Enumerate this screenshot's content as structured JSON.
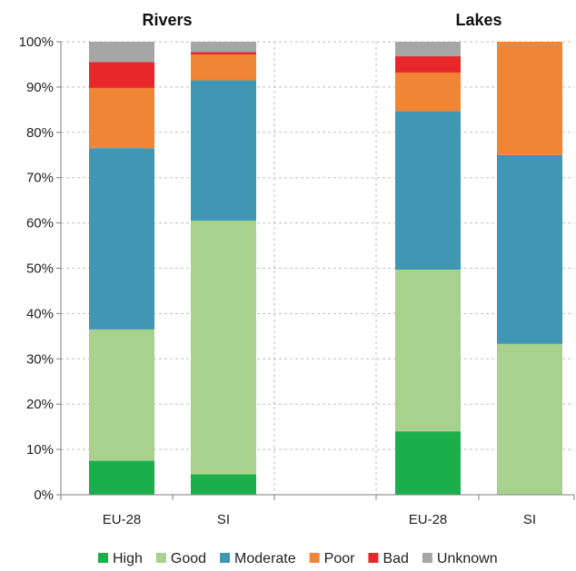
{
  "chart_data": {
    "type": "bar",
    "stacked": true,
    "groups": [
      {
        "title": "Rivers",
        "categories": [
          "EU-28",
          "SI"
        ]
      },
      {
        "title": "Lakes",
        "categories": [
          "EU-28",
          "SI"
        ]
      }
    ],
    "categories": [
      "EU-28",
      "SI",
      "EU-28",
      "SI"
    ],
    "series": [
      {
        "name": "High",
        "color": "#1aaf4b",
        "values": [
          7.5,
          4.5,
          14,
          0
        ]
      },
      {
        "name": "Good",
        "color": "#a8d18d",
        "values": [
          29,
          56,
          35.7,
          33.3
        ]
      },
      {
        "name": "Moderate",
        "color": "#3f97b3",
        "values": [
          40,
          31,
          35,
          41.7
        ]
      },
      {
        "name": "Poor",
        "color": "#ef8535",
        "values": [
          13.3,
          5.7,
          8.5,
          25
        ]
      },
      {
        "name": "Bad",
        "color": "#e8272a",
        "values": [
          5.7,
          0.5,
          3.6,
          0
        ]
      },
      {
        "name": "Unknown",
        "color": "#a6a6a6",
        "values": [
          4.5,
          2.3,
          3.2,
          0
        ]
      }
    ],
    "y_ticks": [
      "0%",
      "10%",
      "20%",
      "30%",
      "40%",
      "50%",
      "60%",
      "70%",
      "80%",
      "90%",
      "100%"
    ],
    "ylim": [
      0,
      100
    ],
    "grid": "y-major-dashed",
    "legend_position": "bottom"
  }
}
